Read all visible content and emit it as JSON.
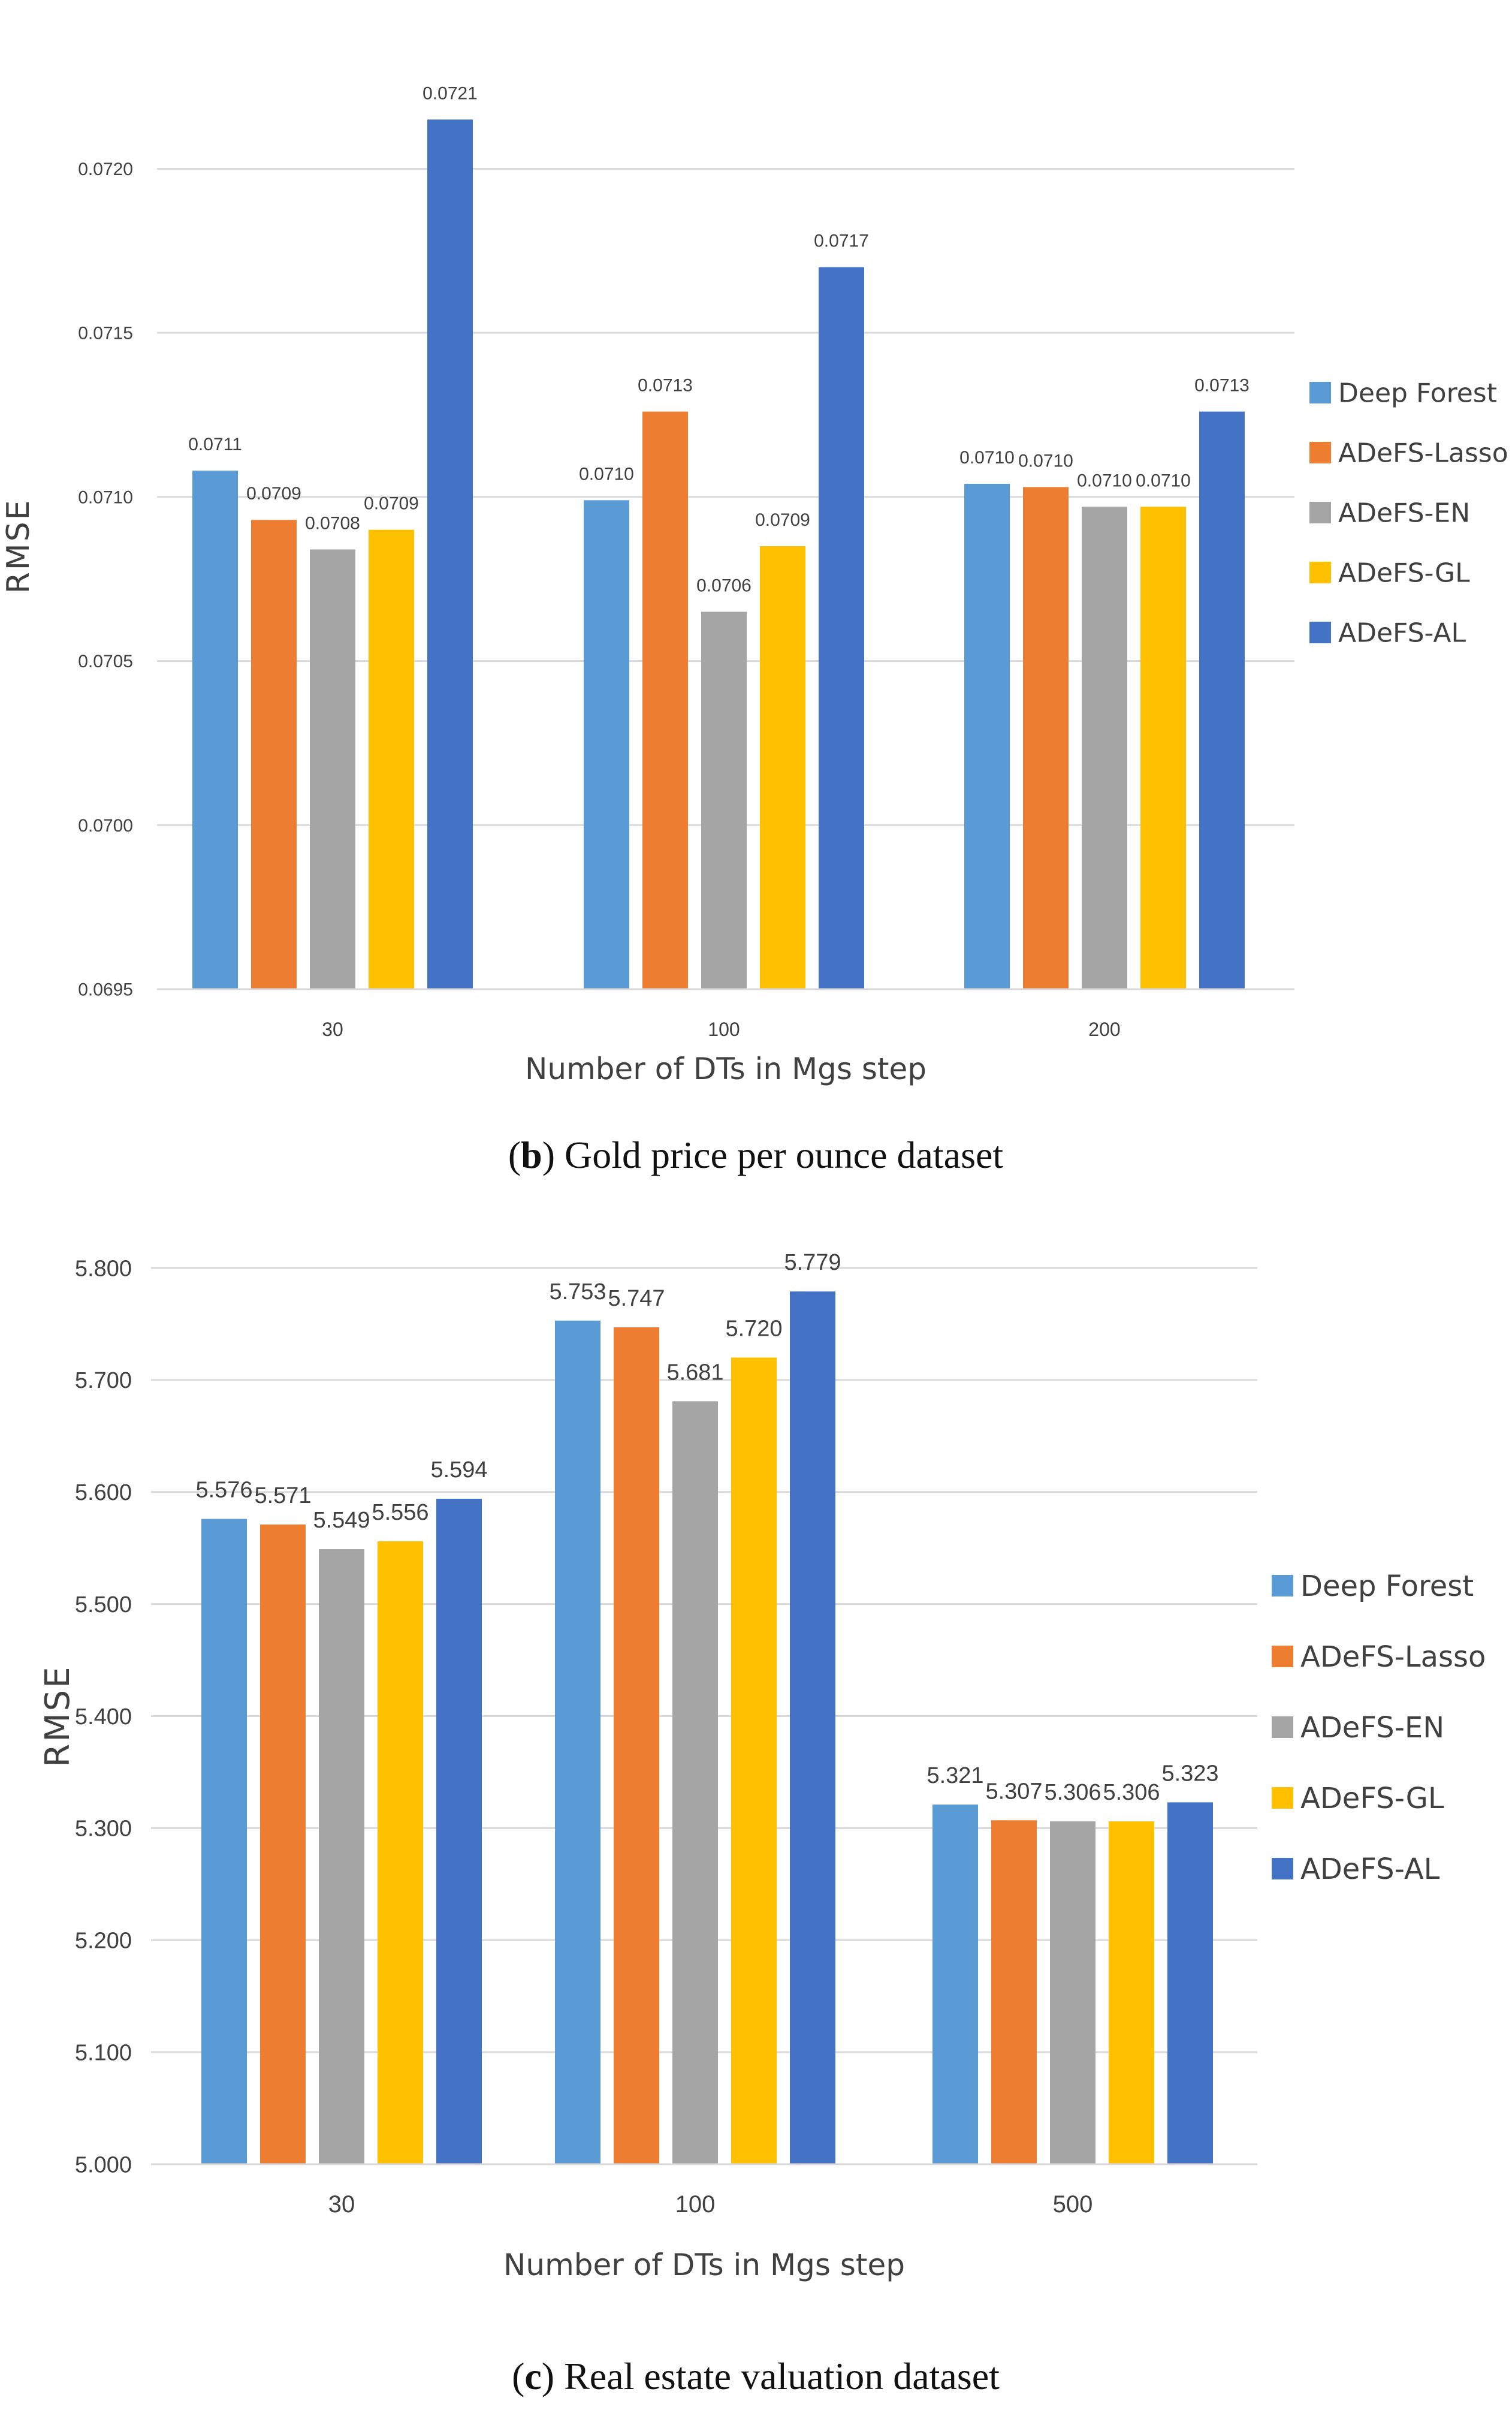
{
  "chart_data": [
    {
      "type": "bar",
      "panel_label": "b",
      "caption": "Gold price per ounce dataset",
      "title": "",
      "xlabel": "Number of DTs in Mgs step",
      "ylabel": "RMSE",
      "ylim": [
        0.0695,
        0.0722
      ],
      "yticks": [
        0.0695,
        0.07,
        0.0705,
        0.071,
        0.0715,
        0.072
      ],
      "ytick_labels": [
        "0.0695",
        "0.0700",
        "0.0705",
        "0.0710",
        "0.0715",
        "0.0720"
      ],
      "categories": [
        "30",
        "100",
        "200"
      ],
      "grid": true,
      "legend_position": "right",
      "series": [
        {
          "name": "Deep Forest",
          "color": "#5b9bd5",
          "values": [
            0.07108,
            0.07099,
            0.07104
          ],
          "labels": [
            "0.0711",
            "0.0710",
            "0.0710"
          ]
        },
        {
          "name": "ADeFS-Lasso",
          "color": "#ed7d31",
          "values": [
            0.07093,
            0.07126,
            0.07103
          ],
          "labels": [
            "0.0709",
            "0.0713",
            "0.0710"
          ]
        },
        {
          "name": "ADeFS-EN",
          "color": "#a5a5a5",
          "values": [
            0.07084,
            0.07065,
            0.07097
          ],
          "labels": [
            "0.0708",
            "0.0706",
            "0.0710"
          ]
        },
        {
          "name": "ADeFS-GL",
          "color": "#ffc000",
          "values": [
            0.0709,
            0.07085,
            0.07097
          ],
          "labels": [
            "0.0709",
            "0.0709",
            "0.0710"
          ]
        },
        {
          "name": "ADeFS-AL",
          "color": "#4472c4",
          "values": [
            0.07215,
            0.0717,
            0.07126
          ],
          "labels": [
            "0.0721",
            "0.0717",
            "0.0713"
          ]
        }
      ]
    },
    {
      "type": "bar",
      "panel_label": "c",
      "caption": "Real estate valuation dataset",
      "title": "",
      "xlabel": "Number of DTs in Mgs step",
      "ylabel": "RMSE",
      "ylim": [
        5.0,
        5.8
      ],
      "yticks": [
        5.0,
        5.1,
        5.2,
        5.3,
        5.4,
        5.5,
        5.6,
        5.7,
        5.8
      ],
      "ytick_labels": [
        "5.000",
        "5.100",
        "5.200",
        "5.300",
        "5.400",
        "5.500",
        "5.600",
        "5.700",
        "5.800"
      ],
      "categories": [
        "30",
        "100",
        "500"
      ],
      "grid": true,
      "legend_position": "right",
      "series": [
        {
          "name": "Deep Forest",
          "color": "#5b9bd5",
          "values": [
            5.576,
            5.753,
            5.321
          ],
          "labels": [
            "5.576",
            "5.753",
            "5.321"
          ]
        },
        {
          "name": "ADeFS-Lasso",
          "color": "#ed7d31",
          "values": [
            5.571,
            5.747,
            5.307
          ],
          "labels": [
            "5.571",
            "5.747",
            "5.307"
          ]
        },
        {
          "name": "ADeFS-EN",
          "color": "#a5a5a5",
          "values": [
            5.549,
            5.681,
            5.306
          ],
          "labels": [
            "5.549",
            "5.681",
            "5.306"
          ]
        },
        {
          "name": "ADeFS-GL",
          "color": "#ffc000",
          "values": [
            5.556,
            5.72,
            5.306
          ],
          "labels": [
            "5.556",
            "5.720",
            "5.306"
          ]
        },
        {
          "name": "ADeFS-AL",
          "color": "#4472c4",
          "values": [
            5.594,
            5.779,
            5.323
          ],
          "labels": [
            "5.594",
            "5.779",
            "5.323"
          ]
        }
      ]
    }
  ]
}
